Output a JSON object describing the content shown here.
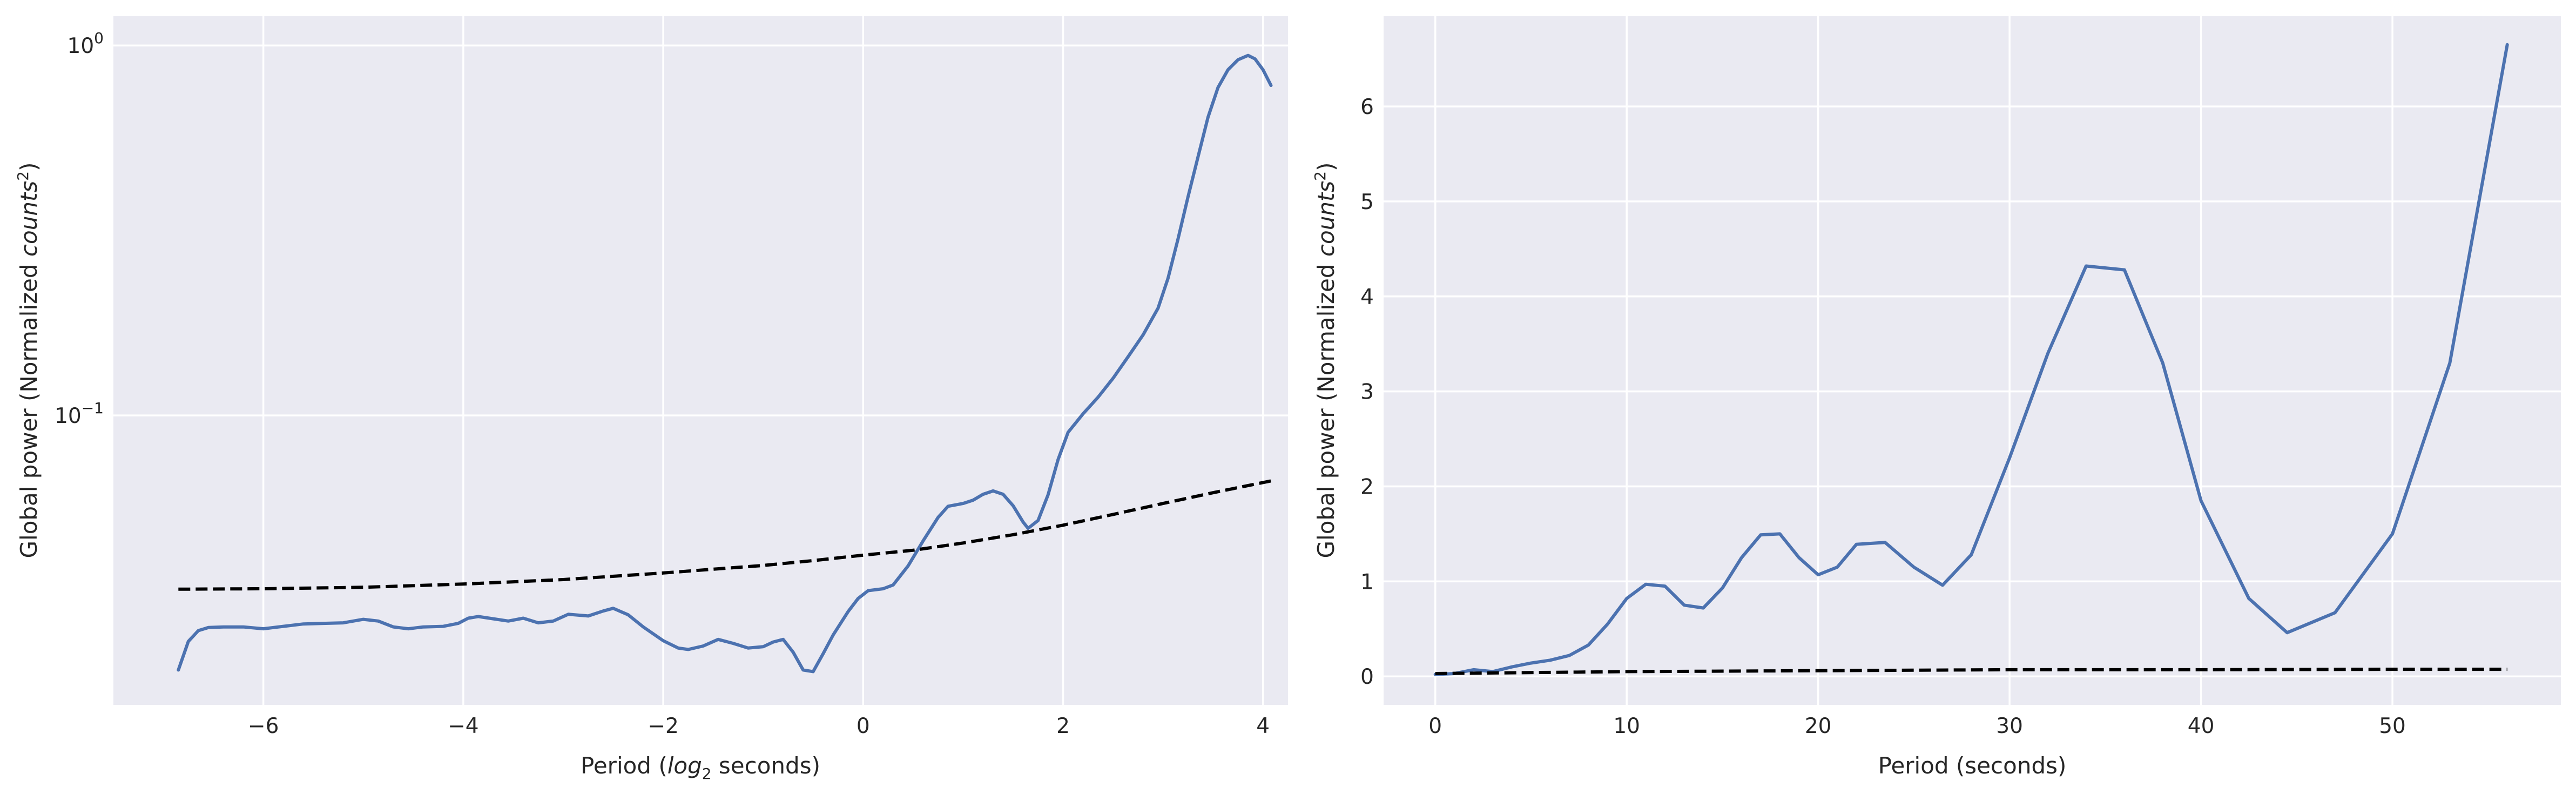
{
  "colors": {
    "power": "#4c72b0",
    "significance": "#000000",
    "background": "#eaeaf2",
    "grid": "#ffffff"
  },
  "chart_data": [
    {
      "type": "line",
      "xlabel_prefix": "Period (",
      "xlabel_math": "log",
      "xlabel_sub": "2",
      "xlabel_suffix": " seconds)",
      "ylabel_prefix": "Global power (Normalized ",
      "ylabel_math": "counts",
      "ylabel_sup": "2",
      "ylabel_suffix": ")",
      "yscale": "log",
      "xlim": [
        -7.5,
        4.25
      ],
      "ylim": [
        0.0165,
        1.2
      ],
      "xticks": [
        -6,
        -4,
        -2,
        0,
        2,
        4
      ],
      "xtick_labels": [
        "−6",
        "−4",
        "−2",
        "0",
        "2",
        "4"
      ],
      "yticks": [
        1,
        0.1
      ],
      "ytick_bases": [
        "10",
        "10"
      ],
      "ytick_exps": [
        "0",
        "−1"
      ],
      "grid": true,
      "series": [
        {
          "style": "solid",
          "points": [
            [
              -6.85,
              0.0205
            ],
            [
              -6.75,
              0.0245
            ],
            [
              -6.65,
              0.0262
            ],
            [
              -6.55,
              0.0267
            ],
            [
              -6.4,
              0.0268
            ],
            [
              -6.2,
              0.0268
            ],
            [
              -6.0,
              0.0265
            ],
            [
              -5.8,
              0.0269
            ],
            [
              -5.6,
              0.0273
            ],
            [
              -5.4,
              0.0274
            ],
            [
              -5.2,
              0.0275
            ],
            [
              -5.0,
              0.0281
            ],
            [
              -4.85,
              0.0278
            ],
            [
              -4.7,
              0.0268
            ],
            [
              -4.55,
              0.0265
            ],
            [
              -4.4,
              0.0268
            ],
            [
              -4.2,
              0.0269
            ],
            [
              -4.05,
              0.0274
            ],
            [
              -3.95,
              0.0283
            ],
            [
              -3.85,
              0.0286
            ],
            [
              -3.7,
              0.0282
            ],
            [
              -3.55,
              0.0278
            ],
            [
              -3.4,
              0.0283
            ],
            [
              -3.25,
              0.0275
            ],
            [
              -3.1,
              0.0278
            ],
            [
              -2.95,
              0.029
            ],
            [
              -2.75,
              0.0287
            ],
            [
              -2.6,
              0.0296
            ],
            [
              -2.5,
              0.0301
            ],
            [
              -2.35,
              0.0289
            ],
            [
              -2.2,
              0.0268
            ],
            [
              -2.0,
              0.0246
            ],
            [
              -1.85,
              0.0235
            ],
            [
              -1.75,
              0.0233
            ],
            [
              -1.6,
              0.0238
            ],
            [
              -1.45,
              0.0248
            ],
            [
              -1.3,
              0.0242
            ],
            [
              -1.15,
              0.0235
            ],
            [
              -1.0,
              0.0237
            ],
            [
              -0.9,
              0.0244
            ],
            [
              -0.8,
              0.0248
            ],
            [
              -0.7,
              0.0229
            ],
            [
              -0.6,
              0.0205
            ],
            [
              -0.5,
              0.0203
            ],
            [
              -0.4,
              0.0227
            ],
            [
              -0.3,
              0.0255
            ],
            [
              -0.15,
              0.0295
            ],
            [
              -0.05,
              0.032
            ],
            [
              0.05,
              0.0336
            ],
            [
              0.2,
              0.034
            ],
            [
              0.3,
              0.0348
            ],
            [
              0.45,
              0.0392
            ],
            [
              0.6,
              0.0458
            ],
            [
              0.75,
              0.053
            ],
            [
              0.85,
              0.0568
            ],
            [
              1.0,
              0.0578
            ],
            [
              1.1,
              0.059
            ],
            [
              1.2,
              0.0612
            ],
            [
              1.3,
              0.0625
            ],
            [
              1.4,
              0.0612
            ],
            [
              1.5,
              0.057
            ],
            [
              1.6,
              0.0515
            ],
            [
              1.65,
              0.0495
            ],
            [
              1.75,
              0.052
            ],
            [
              1.85,
              0.061
            ],
            [
              1.95,
              0.076
            ],
            [
              2.05,
              0.09
            ],
            [
              2.2,
              0.101
            ],
            [
              2.35,
              0.112
            ],
            [
              2.5,
              0.126
            ],
            [
              2.65,
              0.144
            ],
            [
              2.8,
              0.165
            ],
            [
              2.95,
              0.195
            ],
            [
              3.05,
              0.235
            ],
            [
              3.15,
              0.3
            ],
            [
              3.25,
              0.39
            ],
            [
              3.35,
              0.5
            ],
            [
              3.45,
              0.64
            ],
            [
              3.55,
              0.77
            ],
            [
              3.65,
              0.86
            ],
            [
              3.75,
              0.915
            ],
            [
              3.85,
              0.94
            ],
            [
              3.92,
              0.92
            ],
            [
              4.0,
              0.86
            ],
            [
              4.08,
              0.78
            ]
          ]
        },
        {
          "style": "dashed",
          "points": [
            [
              -6.85,
              0.0339
            ],
            [
              -6.0,
              0.034
            ],
            [
              -5.0,
              0.0343
            ],
            [
              -4.0,
              0.035
            ],
            [
              -3.0,
              0.036
            ],
            [
              -2.0,
              0.0375
            ],
            [
              -1.0,
              0.0393
            ],
            [
              -0.5,
              0.0405
            ],
            [
              0.0,
              0.0419
            ],
            [
              0.5,
              0.0432
            ],
            [
              1.0,
              0.0452
            ],
            [
              1.5,
              0.0476
            ],
            [
              2.0,
              0.0505
            ],
            [
              2.5,
              0.054
            ],
            [
              3.0,
              0.0578
            ],
            [
              3.5,
              0.0618
            ],
            [
              4.08,
              0.0665
            ]
          ]
        }
      ]
    },
    {
      "type": "line",
      "xlabel": "Period (seconds)",
      "ylabel_prefix": "Global power (Normalized ",
      "ylabel_math": "counts",
      "ylabel_sup": "2",
      "ylabel_suffix": ")",
      "yscale": "linear",
      "xlim": [
        -2.7,
        58.8
      ],
      "ylim": [
        -0.3,
        6.95
      ],
      "xticks": [
        0,
        10,
        20,
        30,
        40,
        50
      ],
      "xtick_labels": [
        "0",
        "10",
        "20",
        "30",
        "40",
        "50"
      ],
      "yticks": [
        0,
        1,
        2,
        3,
        4,
        5,
        6
      ],
      "ytick_labels": [
        "0",
        "1",
        "2",
        "3",
        "4",
        "5",
        "6"
      ],
      "grid": true,
      "series": [
        {
          "style": "solid",
          "points": [
            [
              0.0,
              0.02
            ],
            [
              1.0,
              0.03
            ],
            [
              2.0,
              0.07
            ],
            [
              3.0,
              0.05
            ],
            [
              4.0,
              0.1
            ],
            [
              5.0,
              0.14
            ],
            [
              6.0,
              0.17
            ],
            [
              7.0,
              0.22
            ],
            [
              8.0,
              0.33
            ],
            [
              9.0,
              0.55
            ],
            [
              10.0,
              0.82
            ],
            [
              11.0,
              0.97
            ],
            [
              12.0,
              0.95
            ],
            [
              13.0,
              0.75
            ],
            [
              14.0,
              0.72
            ],
            [
              15.0,
              0.93
            ],
            [
              16.0,
              1.25
            ],
            [
              17.0,
              1.49
            ],
            [
              18.0,
              1.5
            ],
            [
              19.0,
              1.25
            ],
            [
              20.0,
              1.07
            ],
            [
              21.0,
              1.15
            ],
            [
              22.0,
              1.39
            ],
            [
              23.5,
              1.41
            ],
            [
              25.0,
              1.15
            ],
            [
              26.5,
              0.96
            ],
            [
              28.0,
              1.28
            ],
            [
              30.0,
              2.3
            ],
            [
              32.0,
              3.4
            ],
            [
              34.0,
              4.32
            ],
            [
              36.0,
              4.28
            ],
            [
              38.0,
              3.3
            ],
            [
              40.0,
              1.85
            ],
            [
              42.5,
              0.82
            ],
            [
              44.5,
              0.46
            ],
            [
              47.0,
              0.67
            ],
            [
              50.0,
              1.5
            ],
            [
              53.0,
              3.3
            ],
            [
              56.0,
              6.65
            ]
          ]
        },
        {
          "style": "dashed",
          "points": [
            [
              0.0,
              0.03
            ],
            [
              10.0,
              0.05
            ],
            [
              20.0,
              0.06
            ],
            [
              30.0,
              0.07
            ],
            [
              40.0,
              0.07
            ],
            [
              50.0,
              0.075
            ],
            [
              56.0,
              0.075
            ]
          ]
        }
      ]
    }
  ]
}
